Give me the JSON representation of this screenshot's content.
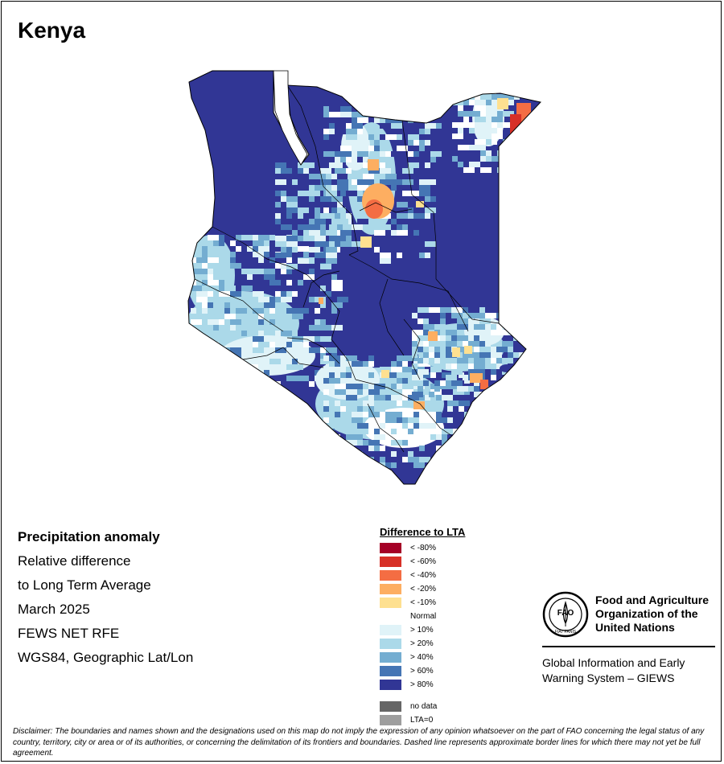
{
  "title": "Kenya",
  "info": {
    "heading": "Precipitation anomaly",
    "line1": "Relative difference",
    "line2": "to Long Term Average",
    "period": "March 2025",
    "source": "FEWS NET RFE",
    "projection": "WGS84, Geographic Lat/Lon"
  },
  "legend": {
    "title": "Difference to LTA",
    "classes": [
      {
        "label": "< -80%",
        "color": "#a50026"
      },
      {
        "label": "< -60%",
        "color": "#d73027"
      },
      {
        "label": "< -40%",
        "color": "#f46d43"
      },
      {
        "label": "< -20%",
        "color": "#fdae61"
      },
      {
        "label": "< -10%",
        "color": "#fee090"
      },
      {
        "label": "Normal",
        "color": "#ffffff"
      },
      {
        "label": "> 10%",
        "color": "#e0f3f8"
      },
      {
        "label": "> 20%",
        "color": "#abd9e9"
      },
      {
        "label": "> 40%",
        "color": "#74add1"
      },
      {
        "label": "> 60%",
        "color": "#4575b4"
      },
      {
        "label": "> 80%",
        "color": "#313695"
      }
    ],
    "special": [
      {
        "label": "no data",
        "color": "#666666"
      },
      {
        "label": "LTA=0",
        "color": "#9e9e9e"
      }
    ]
  },
  "fao": {
    "name": "Food and Agriculture Organization of the United Nations",
    "logo_text": "FAO",
    "logo_motto": "FIAT PANIS",
    "system": "Global Information and Early Warning System – GIEWS"
  },
  "disclaimer": "Disclaimer: The boundaries and names shown and the designations used on this map do not imply the expression of any opinion whatsoever on the part of FAO concerning the legal status of any country, territory, city or area or of its authorities, or concerning the delimitation of its frontiers and boundaries. Dashed line represents approximate border lines for which there may not yet be full agreement."
}
